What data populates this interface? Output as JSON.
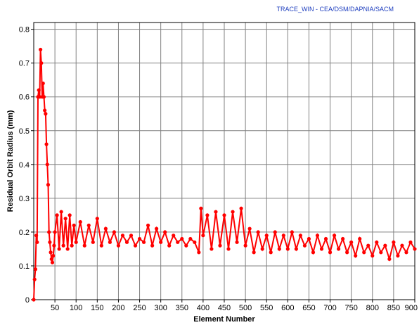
{
  "chart_data": {
    "type": "line",
    "credit": "TRACE_WIN - CEA/DSM/DAPNIA/SACM",
    "xlabel": "Element Number",
    "ylabel": "Residual Orbit Radius (mm)",
    "xlim": [
      0,
      900
    ],
    "ylim": [
      0,
      0.82
    ],
    "x_ticks": [
      50,
      100,
      150,
      200,
      250,
      300,
      350,
      400,
      450,
      500,
      550,
      600,
      650,
      700,
      750,
      800,
      850,
      900
    ],
    "x_tick_labels": [
      "50",
      "100",
      "150",
      "200",
      "250",
      "300",
      "350",
      "400",
      "450",
      "500",
      "550",
      "600",
      "650",
      "700",
      "750",
      "800",
      "850",
      "900"
    ],
    "y_ticks": [
      0,
      0.1,
      0.2,
      0.3,
      0.4,
      0.5,
      0.6,
      0.7,
      0.8
    ],
    "y_tick_labels": [
      "0",
      "0.1",
      "0.2",
      "0.3",
      "0.4",
      "0.5",
      "0.6",
      "0.7",
      "0.8"
    ],
    "grid": true,
    "series_color": "#ff0000",
    "series": [
      {
        "x": [
          0,
          2,
          4,
          6,
          8,
          10,
          12,
          14,
          16,
          18,
          20,
          22,
          24,
          26,
          28,
          30,
          32,
          34,
          36,
          38,
          40,
          42,
          44,
          46,
          48,
          50,
          55,
          60,
          65,
          70,
          75,
          80,
          85,
          90,
          95,
          100,
          110,
          120,
          130,
          140,
          150,
          160,
          170,
          180,
          190,
          200,
          210,
          220,
          230,
          240,
          250,
          260,
          270,
          280,
          290,
          300,
          310,
          320,
          330,
          340,
          350,
          360,
          370,
          380,
          390,
          395,
          400,
          410,
          420,
          430,
          440,
          450,
          460,
          470,
          480,
          490,
          500,
          510,
          520,
          530,
          540,
          550,
          560,
          570,
          580,
          590,
          600,
          610,
          620,
          630,
          640,
          650,
          660,
          670,
          680,
          690,
          700,
          710,
          720,
          730,
          740,
          750,
          760,
          770,
          780,
          790,
          800,
          810,
          820,
          830,
          840,
          850,
          860,
          870,
          880,
          890,
          900
        ],
        "y": [
          0.0,
          0.06,
          0.09,
          0.19,
          0.17,
          0.6,
          0.62,
          0.6,
          0.74,
          0.7,
          0.6,
          0.64,
          0.6,
          0.56,
          0.55,
          0.46,
          0.4,
          0.34,
          0.2,
          0.17,
          0.14,
          0.12,
          0.11,
          0.13,
          0.16,
          0.2,
          0.25,
          0.15,
          0.26,
          0.16,
          0.24,
          0.15,
          0.25,
          0.16,
          0.22,
          0.17,
          0.23,
          0.16,
          0.22,
          0.17,
          0.24,
          0.16,
          0.21,
          0.17,
          0.2,
          0.16,
          0.19,
          0.17,
          0.19,
          0.16,
          0.18,
          0.17,
          0.22,
          0.16,
          0.21,
          0.17,
          0.2,
          0.16,
          0.19,
          0.17,
          0.18,
          0.16,
          0.18,
          0.17,
          0.14,
          0.27,
          0.19,
          0.25,
          0.15,
          0.26,
          0.16,
          0.25,
          0.15,
          0.26,
          0.17,
          0.27,
          0.16,
          0.21,
          0.14,
          0.2,
          0.15,
          0.19,
          0.14,
          0.2,
          0.15,
          0.19,
          0.15,
          0.2,
          0.15,
          0.19,
          0.16,
          0.18,
          0.14,
          0.19,
          0.15,
          0.18,
          0.14,
          0.19,
          0.15,
          0.18,
          0.14,
          0.17,
          0.13,
          0.18,
          0.14,
          0.16,
          0.13,
          0.17,
          0.14,
          0.16,
          0.12,
          0.17,
          0.13,
          0.16,
          0.14,
          0.17,
          0.15
        ]
      }
    ]
  }
}
